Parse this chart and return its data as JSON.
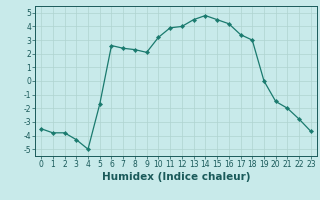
{
  "x": [
    0,
    1,
    2,
    3,
    4,
    5,
    6,
    7,
    8,
    9,
    10,
    11,
    12,
    13,
    14,
    15,
    16,
    17,
    18,
    19,
    20,
    21,
    22,
    23
  ],
  "y": [
    -3.5,
    -3.8,
    -3.8,
    -4.3,
    -5.0,
    -1.7,
    2.6,
    2.4,
    2.3,
    2.1,
    3.2,
    3.9,
    4.0,
    4.5,
    4.8,
    4.5,
    4.2,
    3.4,
    3.0,
    0.0,
    -1.5,
    -2.0,
    -2.8,
    -3.7
  ],
  "line_color": "#1a7a6e",
  "marker": "D",
  "marker_size": 2.2,
  "bg_color": "#c8eaea",
  "grid_color": "#afd4d0",
  "xlabel": "Humidex (Indice chaleur)",
  "xlim": [
    -0.5,
    23.5
  ],
  "ylim": [
    -5.5,
    5.5
  ],
  "yticks": [
    -5,
    -4,
    -3,
    -2,
    -1,
    0,
    1,
    2,
    3,
    4,
    5
  ],
  "xticks": [
    0,
    1,
    2,
    3,
    4,
    5,
    6,
    7,
    8,
    9,
    10,
    11,
    12,
    13,
    14,
    15,
    16,
    17,
    18,
    19,
    20,
    21,
    22,
    23
  ],
  "tick_fontsize": 5.5,
  "xlabel_fontsize": 7.5,
  "tick_color": "#1a5a5a",
  "spine_color": "#1a5a5a",
  "line_width": 0.9
}
